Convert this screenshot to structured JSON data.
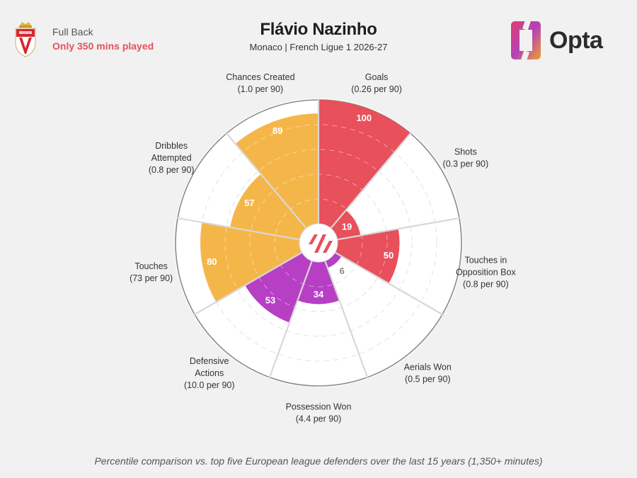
{
  "header": {
    "position": "Full Back",
    "minutes_note": "Only 350 mins played",
    "title": "Flávio Nazinho",
    "subtitle": "Monaco | French Ligue 1 2026-27",
    "brand": "Opta"
  },
  "footnote": "Percentile comparison vs. top five European league defenders over the last 15 years (1,350+ minutes)",
  "colors": {
    "attacking": "#e8505b",
    "possession": "#f5b649",
    "defending": "#b63fc4",
    "brand_accent": "#e8505b",
    "background": "#f1f1f1"
  },
  "chart_data": {
    "type": "radar",
    "scale": [
      0,
      100
    ],
    "rings": [
      20,
      40,
      60,
      80,
      100
    ],
    "metrics": [
      {
        "name": "Goals",
        "label_lines": [
          "Goals",
          "(0.26 per 90)"
        ],
        "value": 100,
        "group": "attacking"
      },
      {
        "name": "Shots",
        "label_lines": [
          "Shots",
          "(0.3 per 90)"
        ],
        "value": 19,
        "group": "attacking"
      },
      {
        "name": "Touches in Opposition Box",
        "label_lines": [
          "Touches in",
          "Opposition Box",
          "(0.8 per 90)"
        ],
        "value": 50,
        "group": "attacking"
      },
      {
        "name": "Aerials Won",
        "label_lines": [
          "Aerials Won",
          "(0.5 per 90)"
        ],
        "value": 6,
        "group": "defending"
      },
      {
        "name": "Possession Won",
        "label_lines": [
          "Possession Won",
          "(4.4 per 90)"
        ],
        "value": 34,
        "group": "defending"
      },
      {
        "name": "Defensive Actions",
        "label_lines": [
          "Defensive",
          "Actions",
          "(10.0 per 90)"
        ],
        "value": 53,
        "group": "defending"
      },
      {
        "name": "Touches",
        "label_lines": [
          "Touches",
          "(73 per 90)"
        ],
        "value": 80,
        "group": "possession"
      },
      {
        "name": "Dribbles Attempted",
        "label_lines": [
          "Dribbles",
          "Attempted",
          "(0.8 per 90)"
        ],
        "value": 57,
        "group": "possession"
      },
      {
        "name": "Chances Created",
        "label_lines": [
          "Chances Created",
          "(1.0 per 90)"
        ],
        "value": 89,
        "group": "possession"
      }
    ]
  }
}
